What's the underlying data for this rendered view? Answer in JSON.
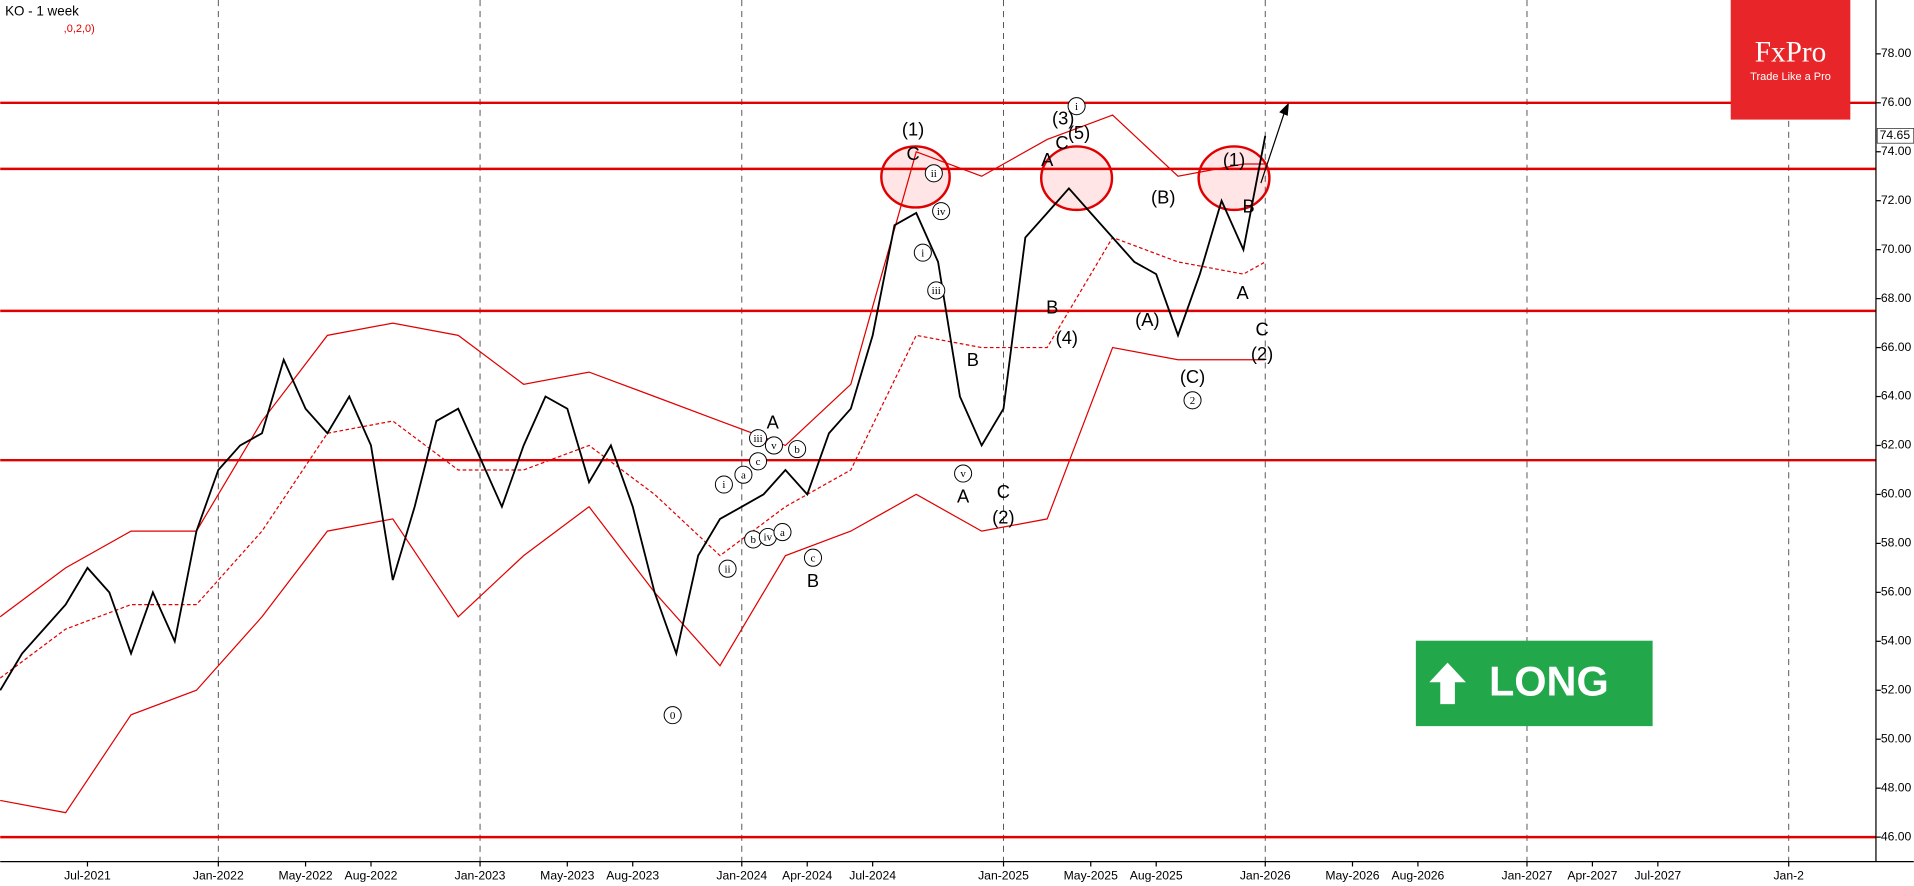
{
  "chart_data": {
    "type": "line",
    "title": "KO - 1 week",
    "subtitle": ",0,2,0)",
    "x": [
      "2021-03",
      "2021-04",
      "2021-05",
      "2021-06",
      "2021-07",
      "2021-08",
      "2021-09",
      "2021-10",
      "2021-11",
      "2021-12",
      "2022-01",
      "2022-02",
      "2022-03",
      "2022-04",
      "2022-05",
      "2022-06",
      "2022-07",
      "2022-08",
      "2022-09",
      "2022-10",
      "2022-11",
      "2022-12",
      "2023-01",
      "2023-02",
      "2023-03",
      "2023-04",
      "2023-05",
      "2023-06",
      "2023-07",
      "2023-08",
      "2023-09",
      "2023-10",
      "2023-11",
      "2023-12",
      "2024-01",
      "2024-02",
      "2024-03",
      "2024-04",
      "2024-05",
      "2024-06",
      "2024-07",
      "2024-08",
      "2024-09",
      "2024-10",
      "2024-11",
      "2024-12",
      "2025-01",
      "2025-02",
      "2025-03",
      "2025-04",
      "2025-05",
      "2025-06",
      "2025-07",
      "2025-08",
      "2025-09",
      "2025-10",
      "2025-11",
      "2025-12",
      "2026-01"
    ],
    "values": [
      52,
      53.5,
      54.5,
      55.5,
      57,
      56,
      53.5,
      56,
      54,
      58.5,
      61,
      62,
      62.5,
      65.5,
      63.5,
      62.5,
      64,
      62,
      56.5,
      59.5,
      63,
      63.5,
      61.5,
      59.5,
      62,
      64,
      63.5,
      60.5,
      62,
      59.5,
      56,
      53.5,
      57.5,
      59,
      59.5,
      60,
      61,
      60,
      62.5,
      63.5,
      66.5,
      71,
      71.5,
      69.5,
      64,
      62,
      63.5,
      70.5,
      71.5,
      72.5,
      71.5,
      70.5,
      69.5,
      69,
      66.5,
      69,
      72,
      70,
      74.65
    ],
    "color": "#000000",
    "last_price": 74.65,
    "band_x": [
      "2021-03",
      "2021-06",
      "2021-09",
      "2021-12",
      "2022-03",
      "2022-06",
      "2022-09",
      "2022-12",
      "2023-03",
      "2023-06",
      "2023-09",
      "2023-12",
      "2024-03",
      "2024-06",
      "2024-09",
      "2024-12",
      "2025-03",
      "2025-06",
      "2025-09",
      "2025-12",
      "2026-01"
    ],
    "bands": [
      {
        "color": "#e00000",
        "dashed": false,
        "values": [
          55,
          57,
          58.5,
          58.5,
          63,
          66.5,
          67,
          66.5,
          64.5,
          65,
          64,
          63,
          62,
          64.5,
          74,
          73,
          74.5,
          75.5,
          73,
          73.5,
          73.5
        ]
      },
      {
        "color": "#e00000",
        "dashed": true,
        "values": [
          52.5,
          54.5,
          55.5,
          55.5,
          58.5,
          62.5,
          63,
          61,
          61,
          62,
          60,
          57.5,
          59.5,
          61,
          66.5,
          66,
          66,
          70.5,
          69.5,
          69,
          69.5
        ]
      },
      {
        "color": "#e00000",
        "dashed": false,
        "values": [
          47.5,
          47,
          51,
          52,
          55,
          58.5,
          59,
          55,
          57.5,
          59.5,
          56,
          53,
          57.5,
          58.5,
          60,
          58.5,
          59,
          66,
          65.5,
          65.5,
          65.5
        ]
      }
    ],
    "hlines": [
      76,
      73.3,
      67.5,
      61.4,
      46
    ],
    "hline_color": "#e00000",
    "xlim": [
      "2021-03",
      "2028-05"
    ],
    "xticks": [
      {
        "value": "2021-07",
        "label": "Jul-2021"
      },
      {
        "value": "2022-01",
        "label": "Jan-2022"
      },
      {
        "value": "2022-05",
        "label": "May-2022"
      },
      {
        "value": "2022-08",
        "label": "Aug-2022"
      },
      {
        "value": "2023-01",
        "label": "Jan-2023"
      },
      {
        "value": "2023-05",
        "label": "May-2023"
      },
      {
        "value": "2023-08",
        "label": "Aug-2023"
      },
      {
        "value": "2024-01",
        "label": "Jan-2024"
      },
      {
        "value": "2024-04",
        "label": "Apr-2024"
      },
      {
        "value": "2024-07",
        "label": "Jul-2024"
      },
      {
        "value": "2025-01",
        "label": "Jan-2025"
      },
      {
        "value": "2025-05",
        "label": "May-2025"
      },
      {
        "value": "2025-08",
        "label": "Aug-2025"
      },
      {
        "value": "2026-01",
        "label": "Jan-2026"
      },
      {
        "value": "2026-05",
        "label": "May-2026"
      },
      {
        "value": "2026-08",
        "label": "Aug-2026"
      },
      {
        "value": "2027-01",
        "label": "Jan-2027"
      },
      {
        "value": "2027-04",
        "label": "Apr-2027"
      },
      {
        "value": "2027-07",
        "label": "Jul-2027"
      },
      {
        "value": "2028-01",
        "label": "Jan-2"
      }
    ],
    "ylim": [
      45,
      80.2
    ],
    "yticks": [
      {
        "value": 46,
        "label": "46.00"
      },
      {
        "value": 48,
        "label": "48.00"
      },
      {
        "value": 50,
        "label": "50.00"
      },
      {
        "value": 52,
        "label": "52.00"
      },
      {
        "value": 54,
        "label": "54.00"
      },
      {
        "value": 56,
        "label": "56.00"
      },
      {
        "value": 58,
        "label": "58.00"
      },
      {
        "value": 60,
        "label": "60.00"
      },
      {
        "value": 62,
        "label": "62.00"
      },
      {
        "value": 64,
        "label": "64.00"
      },
      {
        "value": 66,
        "label": "66.00"
      },
      {
        "value": 68,
        "label": "68.00"
      },
      {
        "value": 70,
        "label": "70.00"
      },
      {
        "value": 72,
        "label": "72.00"
      },
      {
        "value": 74,
        "label": "74.00"
      },
      {
        "value": 76,
        "label": "76.00"
      },
      {
        "value": 78,
        "label": "78.00"
      }
    ],
    "annotations": [
      {
        "text": "(1)",
        "circled": false
      },
      {
        "text": "C",
        "circled": false
      },
      {
        "text": "ii",
        "circled": true
      },
      {
        "text": "iv",
        "circled": true
      },
      {
        "text": "i",
        "circled": true
      },
      {
        "text": "iii",
        "circled": true
      },
      {
        "text": "B",
        "circled": false
      },
      {
        "text": "v",
        "circled": true
      },
      {
        "text": "A",
        "circled": false
      },
      {
        "text": "C",
        "circled": false
      },
      {
        "text": "(2)",
        "circled": false
      },
      {
        "text": "0",
        "circled": true
      },
      {
        "text": "c",
        "circled": true
      },
      {
        "text": "B",
        "circled": false
      },
      {
        "text": "A",
        "circled": false
      },
      {
        "text": "iii",
        "circled": true
      },
      {
        "text": "v",
        "circled": true
      },
      {
        "text": "c",
        "circled": true
      },
      {
        "text": "b",
        "circled": true
      },
      {
        "text": "a",
        "circled": true
      },
      {
        "text": "i",
        "circled": true
      },
      {
        "text": "b",
        "circled": true
      },
      {
        "text": "iv",
        "circled": true
      },
      {
        "text": "a",
        "circled": true
      },
      {
        "text": "ii",
        "circled": true
      },
      {
        "text": "(3)",
        "circled": false
      },
      {
        "text": "(5)",
        "circled": false
      },
      {
        "text": "i",
        "circled": true
      },
      {
        "text": "C",
        "circled": false
      },
      {
        "text": "A",
        "circled": false
      },
      {
        "text": "B",
        "circled": false
      },
      {
        "text": "(4)",
        "circled": false
      },
      {
        "text": "(B)",
        "circled": false
      },
      {
        "text": "(A)",
        "circled": false
      },
      {
        "text": "(C)",
        "circled": false
      },
      {
        "text": "2",
        "circled": true
      },
      {
        "text": "(1)",
        "circled": false
      },
      {
        "text": "B",
        "circled": false
      },
      {
        "text": "A",
        "circled": false
      },
      {
        "text": "C",
        "circled": false
      },
      {
        "text": "(2)",
        "circled": false
      }
    ],
    "signal": "LONG",
    "brand": "FxPro",
    "slogan": "Trade Like a Pro"
  }
}
